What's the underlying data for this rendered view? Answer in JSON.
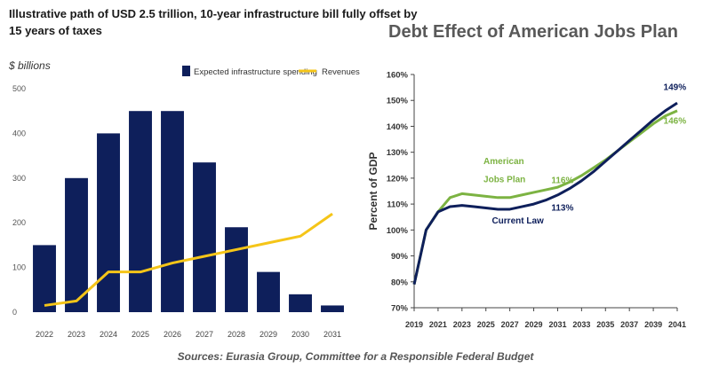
{
  "chart_data": [
    {
      "type": "bar",
      "title": "Illustrative path of USD 2.5 trillion, 10-year infrastructure bill fully offset by 15 years of taxes",
      "title_lines": [
        "Illustrative path of USD 2.5 trillion, 10-year infrastructure bill fully offset by",
        "15 years of taxes"
      ],
      "ylabel": "$ billions",
      "xlabel": "",
      "categories": [
        "2022",
        "2023",
        "2024",
        "2025",
        "2026",
        "2027",
        "2028",
        "2029",
        "2030",
        "2031"
      ],
      "series": [
        {
          "name": "Expected infrastructure spending",
          "type": "bar",
          "color": "#0e1f5b",
          "values": [
            150,
            300,
            400,
            450,
            450,
            335,
            190,
            90,
            40,
            15
          ]
        },
        {
          "name": "Revenues",
          "type": "line",
          "color": "#f5c518",
          "values": [
            15,
            25,
            90,
            90,
            110,
            125,
            140,
            155,
            170,
            220
          ]
        }
      ],
      "ylim": [
        0,
        500
      ],
      "yticks": [
        "0",
        "100",
        "200",
        "300",
        "400",
        "500"
      ],
      "grid": false,
      "legend": "top"
    },
    {
      "type": "line",
      "title": "Debt Effect of American Jobs Plan",
      "ylabel": "Percent of GDP",
      "xlabel": "",
      "x": [
        2019,
        2020,
        2021,
        2022,
        2023,
        2024,
        2025,
        2026,
        2027,
        2028,
        2029,
        2030,
        2031,
        2032,
        2033,
        2034,
        2035,
        2036,
        2037,
        2038,
        2039,
        2040,
        2041
      ],
      "xticks": [
        "2019",
        "2021",
        "2023",
        "2025",
        "2027",
        "2029",
        "2031",
        "2033",
        "2035",
        "2037",
        "2039",
        "2041"
      ],
      "yticks": [
        "70%",
        "80%",
        "90%",
        "100%",
        "110%",
        "120%",
        "130%",
        "140%",
        "150%",
        "160%"
      ],
      "ylim": [
        70,
        160
      ],
      "grid": false,
      "series": [
        {
          "name": "American Jobs Plan",
          "color": "#7cb342",
          "values": [
            79,
            100,
            107,
            112.5,
            114,
            113.5,
            113,
            112.5,
            112.5,
            113.5,
            114.5,
            115.5,
            116.5,
            118.5,
            121,
            124,
            127,
            130.5,
            134,
            137.5,
            141,
            144,
            146
          ]
        },
        {
          "name": "Current Law",
          "color": "#0e1f5b",
          "values": [
            79,
            100,
            107,
            109,
            109.5,
            109,
            108.5,
            108,
            108,
            109,
            110,
            111.5,
            113.5,
            116,
            119,
            122.5,
            126.5,
            130.5,
            134.5,
            138.5,
            142.5,
            146,
            149
          ]
        }
      ],
      "annotations": [
        {
          "text": "American",
          "color": "#7cb342"
        },
        {
          "text": "Jobs Plan",
          "color": "#7cb342"
        },
        {
          "text": "116%",
          "color": "#7cb342"
        },
        {
          "text": "113%",
          "color": "#0e1f5b"
        },
        {
          "text": "Current Law",
          "color": "#0e1f5b"
        },
        {
          "text": "149%",
          "color": "#0e1f5b"
        },
        {
          "text": "146%",
          "color": "#7cb342"
        }
      ]
    }
  ],
  "sources": "Sources: Eurasia Group, Committee for a Responsible Federal Budget"
}
